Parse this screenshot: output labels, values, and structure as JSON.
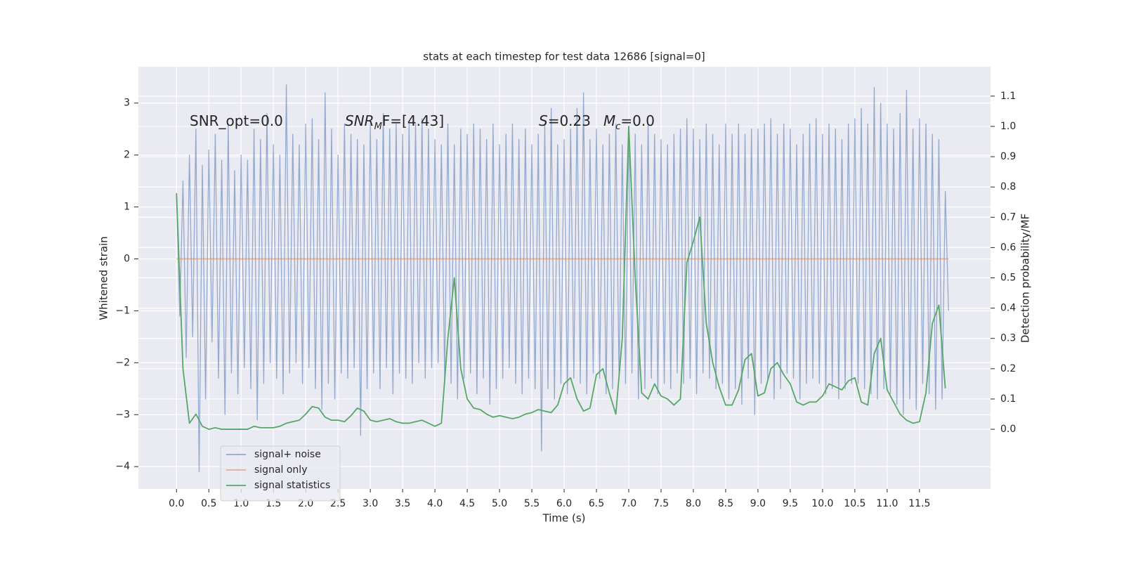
{
  "chart_data": {
    "type": "line",
    "title": "stats at each timestep for test data 12686 [signal=0]",
    "xlabel": "Time (s)",
    "ylabel": "Whitened strain",
    "y2label": "Detection probability/MF",
    "xlim": [
      -0.59,
      12.6
    ],
    "ylim": [
      -4.43,
      3.7
    ],
    "y2lim": [
      -0.197,
      1.197
    ],
    "xticks": [
      {
        "value": 0,
        "label": "0.0"
      },
      0.5,
      {
        "value": 1,
        "label": "1.0"
      },
      1.5,
      {
        "value": 2,
        "label": "2.0"
      },
      2.5,
      {
        "value": 3,
        "label": "3.0"
      },
      3.5,
      {
        "value": 4,
        "label": "4.0"
      },
      4.5,
      {
        "value": 5,
        "label": "5.0"
      },
      5.5,
      {
        "value": 6,
        "label": "6.0"
      },
      6.5,
      {
        "value": 7,
        "label": "7.0"
      },
      7.5,
      {
        "value": 8,
        "label": "8.0"
      },
      8.5,
      {
        "value": 9,
        "label": "9.0"
      },
      9.5,
      {
        "value": 10,
        "label": "10.0"
      },
      10.5,
      {
        "value": 11,
        "label": "11.0"
      },
      11.5
    ],
    "yticks": [
      {
        "value": -4,
        "label": "−4"
      },
      {
        "value": -3,
        "label": "−3"
      },
      {
        "value": -2,
        "label": "−2"
      },
      {
        "value": -1,
        "label": "−1"
      },
      0,
      1,
      2,
      3
    ],
    "y2ticks": [
      {
        "value": 0,
        "label": "0.0"
      },
      0.1,
      0.2,
      0.3,
      0.4,
      0.5,
      0.6,
      0.7,
      0.8,
      0.9,
      {
        "value": 1,
        "label": "1.0"
      },
      1.1
    ],
    "grid": true,
    "legend": "lower left",
    "annotations": [
      {
        "text": "SNR_opt=0.0"
      },
      {
        "italic": "SNR",
        "sub": "M",
        "text": "F=[4.43]"
      },
      {
        "italic": "S",
        "text": "=0.23"
      },
      {
        "italic": "M",
        "sub": "c",
        "text": "=0.0"
      }
    ],
    "series": [
      {
        "name": "signal+ noise",
        "color": "#4c72b0",
        "x": [
          0,
          0.05,
          0.1,
          0.15,
          0.2,
          0.25,
          0.3,
          0.35,
          0.4,
          0.45,
          0.5,
          0.55,
          0.6,
          0.65,
          0.7,
          0.75,
          0.8,
          0.85,
          0.9,
          0.95,
          1,
          1.05,
          1.1,
          1.15,
          1.2,
          1.25,
          1.3,
          1.35,
          1.4,
          1.45,
          1.5,
          1.55,
          1.6,
          1.65,
          1.7,
          1.75,
          1.8,
          1.85,
          1.9,
          1.95,
          2,
          2.05,
          2.1,
          2.15,
          2.2,
          2.25,
          2.3,
          2.35,
          2.4,
          2.45,
          2.5,
          2.55,
          2.6,
          2.65,
          2.7,
          2.75,
          2.8,
          2.85,
          2.9,
          2.95,
          3,
          3.05,
          3.1,
          3.15,
          3.2,
          3.25,
          3.3,
          3.35,
          3.4,
          3.45,
          3.5,
          3.55,
          3.6,
          3.65,
          3.7,
          3.75,
          3.8,
          3.85,
          3.9,
          3.95,
          4,
          4.05,
          4.1,
          4.15,
          4.2,
          4.25,
          4.3,
          4.35,
          4.4,
          4.45,
          4.5,
          4.55,
          4.6,
          4.65,
          4.7,
          4.75,
          4.8,
          4.85,
          4.9,
          4.95,
          5,
          5.05,
          5.1,
          5.15,
          5.2,
          5.25,
          5.3,
          5.35,
          5.4,
          5.45,
          5.5,
          5.55,
          5.6,
          5.65,
          5.7,
          5.75,
          5.8,
          5.85,
          5.9,
          5.95,
          6,
          6.05,
          6.1,
          6.15,
          6.2,
          6.25,
          6.3,
          6.35,
          6.4,
          6.45,
          6.5,
          6.55,
          6.6,
          6.65,
          6.7,
          6.75,
          6.8,
          6.85,
          6.9,
          6.95,
          7,
          7.05,
          7.1,
          7.15,
          7.2,
          7.25,
          7.3,
          7.35,
          7.4,
          7.45,
          7.5,
          7.55,
          7.6,
          7.65,
          7.7,
          7.75,
          7.8,
          7.85,
          7.9,
          7.95,
          8,
          8.05,
          8.1,
          8.15,
          8.2,
          8.25,
          8.3,
          8.35,
          8.4,
          8.45,
          8.5,
          8.55,
          8.6,
          8.65,
          8.7,
          8.75,
          8.8,
          8.85,
          8.9,
          8.95,
          9,
          9.05,
          9.1,
          9.15,
          9.2,
          9.25,
          9.3,
          9.35,
          9.4,
          9.45,
          9.5,
          9.55,
          9.6,
          9.65,
          9.7,
          9.75,
          9.8,
          9.85,
          9.9,
          9.95,
          10,
          10.05,
          10.1,
          10.15,
          10.2,
          10.25,
          10.3,
          10.35,
          10.4,
          10.45,
          10.5,
          10.55,
          10.6,
          10.65,
          10.7,
          10.75,
          10.8,
          10.85,
          10.9,
          10.95,
          11,
          11.05,
          11.1,
          11.15,
          11.2,
          11.25,
          11.3,
          11.35,
          11.4,
          11.45,
          11.5,
          11.55,
          11.6,
          11.65,
          11.7,
          11.75,
          11.8,
          11.85,
          11.9,
          11.95
        ],
        "values": [
          1.25,
          -1.1,
          1.5,
          -1.9,
          2.0,
          -1.5,
          2.5,
          -4.1,
          1.8,
          -2.7,
          2.1,
          -1.6,
          2.4,
          -2.3,
          1.9,
          -3.0,
          2.6,
          -2.2,
          1.7,
          -2.6,
          2.0,
          -2.1,
          1.9,
          -2.5,
          2.5,
          -3.1,
          2.3,
          -2.4,
          2.8,
          -2.0,
          2.2,
          -2.3,
          2.0,
          -2.6,
          3.35,
          -2.2,
          2.4,
          -2.0,
          2.2,
          -2.4,
          2.6,
          -2.1,
          2.7,
          -2.5,
          2.3,
          -2.9,
          3.2,
          -2.4,
          2.5,
          -2.7,
          2.0,
          -2.2,
          2.6,
          -2.3,
          2.4,
          -2.1,
          2.3,
          -3.4,
          2.2,
          -2.5,
          2.6,
          -2.2,
          2.3,
          -2.5,
          2.8,
          -2.1,
          2.5,
          -2.6,
          2.6,
          -2.2,
          2.4,
          -2.3,
          2.6,
          -2.4,
          2.6,
          -2.0,
          2.7,
          -2.3,
          2.5,
          -2.1,
          2.3,
          -2.0,
          2.2,
          -2.3,
          2.6,
          -2.4,
          2.2,
          -2.7,
          2.5,
          -2.3,
          2.4,
          -2.2,
          2.6,
          -2.6,
          2.5,
          -2.3,
          2.3,
          -2.8,
          2.6,
          -2.5,
          2.2,
          -2.3,
          2.4,
          -2.1,
          2.6,
          -2.4,
          2.3,
          -2.6,
          2.5,
          -2.3,
          2.2,
          -2.5,
          2.4,
          -3.7,
          2.6,
          -2.5,
          2.9,
          -2.7,
          2.2,
          -2.4,
          2.3,
          -2.6,
          2.5,
          -2.3,
          2.9,
          -2.4,
          3.2,
          -2.6,
          2.3,
          -2.2,
          2.5,
          -2.3,
          2.2,
          -2.6,
          2.4,
          -2.5,
          2.6,
          -2.3,
          2.2,
          -2.4,
          2.5,
          -2.2,
          2.4,
          -2.7,
          2.2,
          -2.5,
          2.6,
          -2.3,
          2.4,
          -2.6,
          2.3,
          -2.4,
          2.2,
          -2.5,
          2.4,
          -2.2,
          2.5,
          -2.4,
          2.7,
          -2.3,
          2.5,
          -2.6,
          2.3,
          -2.2,
          2.6,
          -2.3,
          2.4,
          -2.5,
          2.2,
          -2.4,
          2.6,
          -2.7,
          2.4,
          -2.5,
          2.6,
          -2.8,
          2.4,
          -2.3,
          2.5,
          -3.0,
          2.5,
          -2.4,
          2.6,
          -2.3,
          2.7,
          -2.7,
          2.4,
          -2.5,
          2.6,
          -2.2,
          2.5,
          -2.3,
          2.2,
          -2.7,
          2.4,
          -2.4,
          2.6,
          -2.3,
          2.7,
          -2.4,
          2.4,
          -2.6,
          2.6,
          -2.5,
          2.5,
          -2.7,
          2.3,
          -2.5,
          2.6,
          -2.4,
          2.7,
          -2.4,
          2.9,
          -2.5,
          2.6,
          -2.6,
          3.3,
          -2.7,
          3.0,
          -2.5,
          2.6,
          -2.6,
          2.5,
          -2.8,
          2.8,
          -3.0,
          3.25,
          -2.7,
          2.5,
          -2.9,
          2.7,
          -2.4,
          2.6,
          -2.6,
          2.4,
          -2.9,
          2.3,
          -2.7,
          1.3,
          -1.0
        ]
      },
      {
        "name": "signal only",
        "color": "#dd8452",
        "x": [
          0,
          11.95
        ],
        "values": [
          0,
          0
        ]
      },
      {
        "name": "signal statistics",
        "color": "#55a868",
        "axis": "y2",
        "x": [
          0,
          0.1,
          0.2,
          0.3,
          0.4,
          0.5,
          0.6,
          0.7,
          0.8,
          0.9,
          1,
          1.1,
          1.2,
          1.3,
          1.4,
          1.5,
          1.6,
          1.7,
          1.8,
          1.9,
          2,
          2.1,
          2.2,
          2.3,
          2.4,
          2.5,
          2.6,
          2.7,
          2.8,
          2.9,
          3,
          3.1,
          3.2,
          3.3,
          3.4,
          3.5,
          3.6,
          3.7,
          3.8,
          3.9,
          4,
          4.1,
          4.2,
          4.3,
          4.4,
          4.5,
          4.6,
          4.7,
          4.8,
          4.9,
          5,
          5.1,
          5.2,
          5.3,
          5.4,
          5.5,
          5.6,
          5.7,
          5.8,
          5.9,
          6,
          6.1,
          6.2,
          6.3,
          6.4,
          6.5,
          6.6,
          6.7,
          6.8,
          6.9,
          7,
          7.1,
          7.2,
          7.3,
          7.4,
          7.5,
          7.6,
          7.7,
          7.8,
          7.9,
          8,
          8.1,
          8.2,
          8.3,
          8.4,
          8.5,
          8.6,
          8.7,
          8.8,
          8.9,
          9,
          9.1,
          9.2,
          9.3,
          9.4,
          9.5,
          9.6,
          9.7,
          9.8,
          9.9,
          10,
          10.1,
          10.2,
          10.3,
          10.4,
          10.5,
          10.6,
          10.7,
          10.8,
          10.9,
          11,
          11.1,
          11.2,
          11.3,
          11.4,
          11.5,
          11.6,
          11.7,
          11.8,
          11.9
        ],
        "values": [
          0.78,
          0.2,
          0.02,
          0.05,
          0.01,
          0,
          0.005,
          0,
          0,
          0,
          0,
          0,
          0.01,
          0.005,
          0.005,
          0.005,
          0.01,
          0.02,
          0.025,
          0.03,
          0.05,
          0.075,
          0.07,
          0.04,
          0.03,
          0.03,
          0.025,
          0.045,
          0.07,
          0.06,
          0.03,
          0.025,
          0.03,
          0.035,
          0.025,
          0.02,
          0.02,
          0.025,
          0.03,
          0.02,
          0.01,
          0.02,
          0.3,
          0.5,
          0.2,
          0.1,
          0.07,
          0.065,
          0.05,
          0.04,
          0.045,
          0.04,
          0.035,
          0.04,
          0.05,
          0.055,
          0.065,
          0.06,
          0.055,
          0.08,
          0.15,
          0.17,
          0.1,
          0.06,
          0.07,
          0.18,
          0.2,
          0.12,
          0.05,
          0.3,
          1,
          0.5,
          0.12,
          0.1,
          0.15,
          0.11,
          0.1,
          0.08,
          0.1,
          0.55,
          0.62,
          0.7,
          0.35,
          0.22,
          0.14,
          0.08,
          0.08,
          0.13,
          0.23,
          0.25,
          0.11,
          0.12,
          0.2,
          0.22,
          0.18,
          0.15,
          0.09,
          0.08,
          0.09,
          0.09,
          0.11,
          0.15,
          0.14,
          0.13,
          0.16,
          0.17,
          0.09,
          0.08,
          0.25,
          0.3,
          0.13,
          0.09,
          0.05,
          0.03,
          0.02,
          0.025,
          0.12,
          0.35,
          0.41,
          0.135
        ]
      }
    ]
  }
}
